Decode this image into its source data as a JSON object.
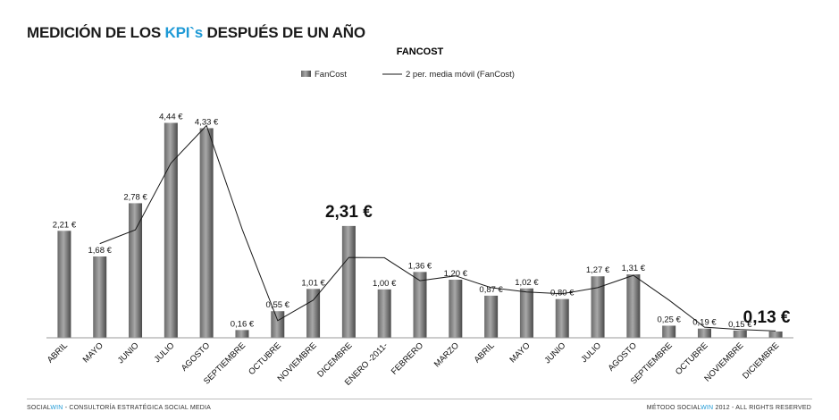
{
  "header": {
    "title_pre": "MEDICIÓN DE LOS ",
    "title_highlight": "KPI`s",
    "title_post": " DESPUÉS DE UN AÑO"
  },
  "footer": {
    "left_brand_a": "SOCIAL",
    "left_brand_b": "WIN",
    "left_rest": " - CONSULTORÍA ESTRATÉGICA SOCIAL MEDIA",
    "right_pre": "MÉTODO ",
    "right_brand_a": "SOCIAL",
    "right_brand_b": "WIN",
    "right_rest": " 2012 - ALL RIGHTS RESERVED"
  },
  "colors": {
    "accent": "#1f9ad6",
    "bar": "#7a7a7a",
    "line": "#1a1a1a"
  },
  "chart_data": {
    "type": "bar",
    "title": "FANCOST",
    "legend": [
      "FanCost",
      "2 per. media móvil (FanCost)"
    ],
    "legend_position": "top",
    "grid": false,
    "ylim": [
      0,
      4.8
    ],
    "categories": [
      "ABRIL",
      "MAYO",
      "JUNIO",
      "JULIO",
      "AGOSTO",
      "SEPTIEMBRE",
      "OCTUBRE",
      "NOVIEMBRE",
      "DICEMBRE",
      "ENERO -2011-",
      "FEBRERO",
      "MARZO",
      "ABRIL",
      "MAYO",
      "JUNIO",
      "JULIO",
      "AGOSTO",
      "SEPTIEMBRE",
      "OCTUBRE",
      "NOVIEMBRE",
      "DICIEMBRE"
    ],
    "series": [
      {
        "name": "FanCost",
        "values": [
          2.21,
          1.68,
          2.78,
          4.44,
          4.33,
          0.16,
          0.55,
          1.01,
          2.31,
          1.0,
          1.36,
          1.2,
          0.87,
          1.02,
          0.8,
          1.27,
          1.31,
          0.25,
          0.19,
          0.15,
          0.13
        ],
        "labels": [
          "2,21 €",
          "1,68 €",
          "2,78 €",
          "4,44 €",
          "4,33 €",
          "0,16 €",
          "0,55 €",
          "1,01 €",
          "2,31 €",
          "1,00 €",
          "1,36 €",
          "1,20 €",
          "0,87 €",
          "1,02 €",
          "0,80 €",
          "1,27 €",
          "1,31 €",
          "0,25 €",
          "0,19 €",
          "0,15 €",
          "0,13 €"
        ],
        "highlight_labels": [
          8,
          20
        ]
      },
      {
        "name": "2 per. media móvil (FanCost)",
        "type": "line",
        "values": [
          null,
          1.945,
          2.23,
          3.61,
          4.385,
          2.245,
          0.355,
          0.78,
          1.66,
          1.655,
          1.18,
          1.28,
          1.035,
          0.945,
          0.91,
          1.035,
          1.29,
          0.78,
          0.22,
          0.17,
          0.14
        ]
      }
    ]
  }
}
